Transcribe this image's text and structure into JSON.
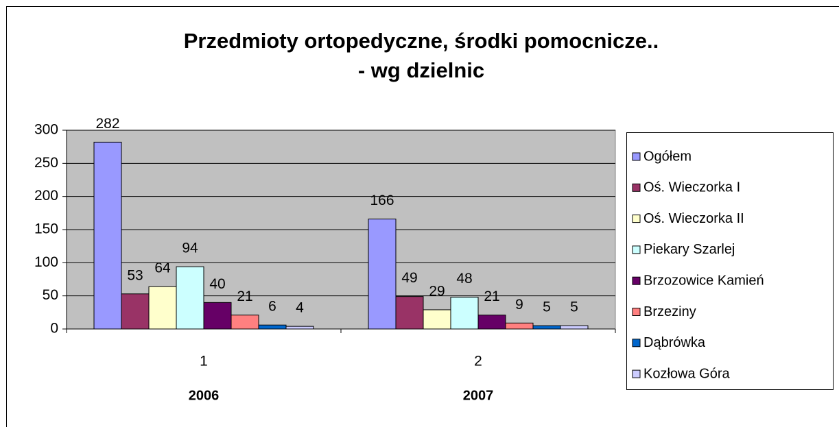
{
  "chart_data": {
    "type": "bar",
    "title": [
      "Przedmioty ortopedyczne, środki pomocnicze..",
      "- wg dzielnic"
    ],
    "categories": [
      "1",
      "2"
    ],
    "category_groups": [
      "2006",
      "2007"
    ],
    "series": [
      {
        "name": "Ogółem",
        "color": "#9999ff",
        "values": [
          282,
          166
        ]
      },
      {
        "name": "Oś. Wieczorka I",
        "color": "#993366",
        "values": [
          53,
          49
        ]
      },
      {
        "name": "Oś. Wieczorka II",
        "color": "#ffffcc",
        "values": [
          64,
          29
        ]
      },
      {
        "name": "Piekary Szarlej",
        "color": "#ccffff",
        "values": [
          94,
          48
        ]
      },
      {
        "name": "Brzozowice Kamień",
        "color": "#660066",
        "values": [
          40,
          21
        ]
      },
      {
        "name": "Brzeziny",
        "color": "#ff8080",
        "values": [
          21,
          9
        ]
      },
      {
        "name": "Dąbrówka",
        "color": "#0066cc",
        "values": [
          6,
          5
        ]
      },
      {
        "name": "Kozłowa Góra",
        "color": "#ccccff",
        "values": [
          4,
          5
        ]
      }
    ],
    "ylim": [
      0,
      300
    ],
    "yticks": [
      0,
      50,
      100,
      150,
      200,
      250,
      300
    ],
    "grid": true,
    "plot_background": "#c0c0c0",
    "legend": "right"
  }
}
